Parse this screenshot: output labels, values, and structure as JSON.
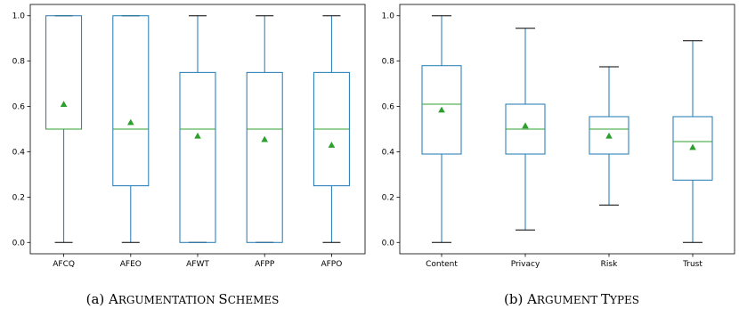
{
  "chart_data": [
    {
      "type": "boxplot",
      "caption_prefix": "(a) ",
      "caption_first_letter_A": "A",
      "caption_rest_A": "RGUMENTATION ",
      "caption_first_letter_B": "S",
      "caption_rest_B": "CHEMES",
      "categories": [
        "AFCQ",
        "AFEO",
        "AFWT",
        "AFPP",
        "AFPO"
      ],
      "boxes": [
        {
          "whislo": 0.0,
          "q1": 0.5,
          "med": 0.5,
          "q3": 1.0,
          "whishi": 1.0,
          "mean": 0.61
        },
        {
          "whislo": 0.0,
          "q1": 0.25,
          "med": 0.5,
          "q3": 1.0,
          "whishi": 1.0,
          "mean": 0.53
        },
        {
          "whislo": 0.0,
          "q1": 0.0,
          "med": 0.5,
          "q3": 0.75,
          "whishi": 1.0,
          "mean": 0.47
        },
        {
          "whislo": 0.0,
          "q1": 0.0,
          "med": 0.5,
          "q3": 0.75,
          "whishi": 1.0,
          "mean": 0.455
        },
        {
          "whislo": 0.0,
          "q1": 0.25,
          "med": 0.5,
          "q3": 0.75,
          "whishi": 1.0,
          "mean": 0.43
        }
      ],
      "yticks": [
        "0.0",
        "0.2",
        "0.4",
        "0.6",
        "0.8",
        "1.0"
      ],
      "ylim": [
        -0.05,
        1.05
      ]
    },
    {
      "type": "boxplot",
      "caption_prefix": "(b) ",
      "caption_first_letter_A": "A",
      "caption_rest_A": "RGUMENT ",
      "caption_first_letter_B": "T",
      "caption_rest_B": "YPES",
      "categories": [
        "Content",
        "Privacy",
        "Risk",
        "Trust"
      ],
      "boxes": [
        {
          "whislo": 0.0,
          "q1": 0.39,
          "med": 0.61,
          "q3": 0.78,
          "whishi": 1.0,
          "mean": 0.585
        },
        {
          "whislo": 0.055,
          "q1": 0.39,
          "med": 0.5,
          "q3": 0.61,
          "whishi": 0.945,
          "mean": 0.515
        },
        {
          "whislo": 0.165,
          "q1": 0.39,
          "med": 0.5,
          "q3": 0.555,
          "whishi": 0.775,
          "mean": 0.47
        },
        {
          "whislo": 0.0,
          "q1": 0.275,
          "med": 0.445,
          "q3": 0.555,
          "whishi": 0.89,
          "mean": 0.42
        }
      ],
      "yticks": [
        "0.0",
        "0.2",
        "0.4",
        "0.6",
        "0.8",
        "1.0"
      ],
      "ylim": [
        -0.05,
        1.05
      ]
    }
  ],
  "colors": {
    "box": "#1f77b4",
    "median": "#2ca02c",
    "mean": "#2ca02c",
    "axis": "#000000"
  }
}
